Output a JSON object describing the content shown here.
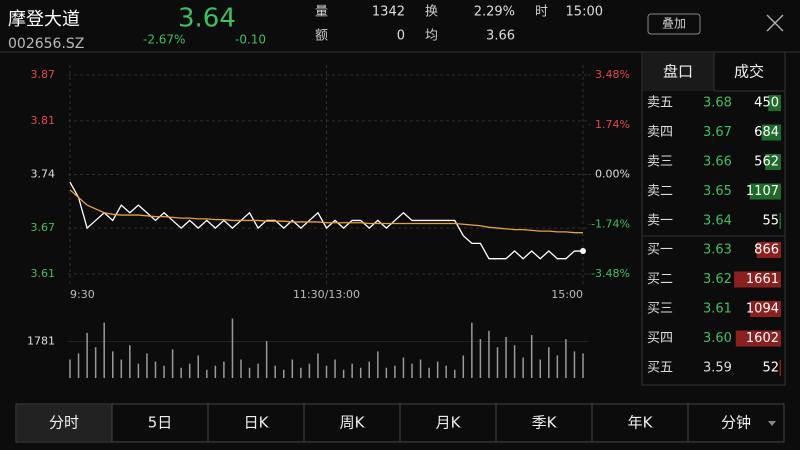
{
  "header": {
    "name": "摩登大道",
    "code": "002656.SZ",
    "price": "3.64",
    "change_pct": "-2.67%",
    "change": "-0.10",
    "stats": [
      {
        "label": "量",
        "value": "1342"
      },
      {
        "label": "额",
        "value": "0"
      },
      {
        "label": "换",
        "value": "2.29%"
      },
      {
        "label": "均",
        "value": "3.66"
      },
      {
        "label": "时",
        "value": "15:00"
      }
    ],
    "button": "叠加"
  },
  "chart_data": [
    {
      "type": "line",
      "xlim": [
        0,
        240
      ],
      "xticks": [
        {
          "value": 0,
          "label": "9:30"
        },
        {
          "value": 120,
          "label": "11:30/13:00"
        },
        {
          "value": 240,
          "label": "15:00"
        }
      ],
      "ylim": [
        3.61,
        3.87
      ],
      "yticks": [
        3.61,
        3.67,
        3.74,
        3.81,
        3.87
      ],
      "ytick_colors": [
        "#3fbf5f",
        "#3fbf5f",
        "#dddddd",
        "#e04848",
        "#e04848"
      ],
      "y2lim": [
        -3.48,
        3.48
      ],
      "y2ticks": [
        {
          "value": -3.48,
          "label": "-3.48%"
        },
        {
          "value": -1.74,
          "label": "-1.74%"
        },
        {
          "value": 0,
          "label": "0.00%"
        },
        {
          "value": 1.74,
          "label": "1.74%"
        },
        {
          "value": 3.48,
          "label": "3.48%"
        }
      ],
      "y2tick_colors": [
        "#3fbf5f",
        "#3fbf5f",
        "#dddddd",
        "#e04848",
        "#e04848"
      ],
      "grid": true,
      "x": [
        0,
        4,
        8,
        12,
        16,
        20,
        24,
        28,
        32,
        36,
        40,
        44,
        48,
        52,
        56,
        60,
        64,
        68,
        72,
        76,
        80,
        84,
        88,
        92,
        96,
        100,
        104,
        108,
        112,
        116,
        120,
        124,
        128,
        132,
        136,
        140,
        144,
        148,
        152,
        156,
        160,
        164,
        168,
        172,
        176,
        180,
        184,
        188,
        192,
        196,
        200,
        204,
        208,
        212,
        216,
        220,
        224,
        228,
        232,
        236,
        240
      ],
      "series": [
        {
          "name": "price",
          "color": "#ffffff",
          "values": [
            3.73,
            3.71,
            3.67,
            3.68,
            3.69,
            3.68,
            3.7,
            3.69,
            3.7,
            3.69,
            3.68,
            3.69,
            3.68,
            3.67,
            3.68,
            3.67,
            3.68,
            3.67,
            3.68,
            3.67,
            3.68,
            3.69,
            3.67,
            3.68,
            3.68,
            3.67,
            3.68,
            3.67,
            3.68,
            3.69,
            3.67,
            3.68,
            3.67,
            3.68,
            3.68,
            3.67,
            3.68,
            3.67,
            3.68,
            3.69,
            3.68,
            3.68,
            3.68,
            3.68,
            3.68,
            3.68,
            3.66,
            3.65,
            3.65,
            3.63,
            3.63,
            3.63,
            3.64,
            3.63,
            3.64,
            3.63,
            3.64,
            3.63,
            3.63,
            3.64,
            3.64
          ]
        },
        {
          "name": "average",
          "color": "#e8a040",
          "values": [
            3.72,
            3.71,
            3.7,
            3.695,
            3.69,
            3.688,
            3.687,
            3.687,
            3.687,
            3.686,
            3.685,
            3.685,
            3.684,
            3.683,
            3.683,
            3.682,
            3.682,
            3.681,
            3.681,
            3.68,
            3.68,
            3.68,
            3.68,
            3.679,
            3.679,
            3.679,
            3.678,
            3.678,
            3.678,
            3.678,
            3.677,
            3.677,
            3.677,
            3.677,
            3.677,
            3.676,
            3.676,
            3.676,
            3.676,
            3.676,
            3.676,
            3.676,
            3.676,
            3.676,
            3.676,
            3.676,
            3.675,
            3.674,
            3.673,
            3.671,
            3.67,
            3.669,
            3.668,
            3.668,
            3.667,
            3.666,
            3.666,
            3.665,
            3.665,
            3.664,
            3.664
          ]
        }
      ]
    },
    {
      "type": "bar",
      "xlim": [
        0,
        240
      ],
      "ylim": [
        0,
        3562
      ],
      "yticks": [
        1781
      ],
      "color": "#9a9a9a",
      "x": [
        0,
        4,
        8,
        12,
        16,
        20,
        24,
        28,
        32,
        36,
        40,
        44,
        48,
        52,
        56,
        60,
        64,
        68,
        72,
        76,
        80,
        84,
        88,
        92,
        96,
        100,
        104,
        108,
        112,
        116,
        120,
        124,
        128,
        132,
        136,
        140,
        144,
        148,
        152,
        156,
        160,
        164,
        168,
        172,
        176,
        180,
        184,
        188,
        192,
        196,
        200,
        204,
        208,
        212,
        216,
        220,
        224,
        228,
        232,
        236,
        240
      ],
      "values": [
        900,
        1200,
        2200,
        1500,
        2700,
        1300,
        900,
        1600,
        700,
        1200,
        800,
        600,
        1400,
        500,
        700,
        1100,
        400,
        600,
        800,
        2900,
        900,
        500,
        700,
        1800,
        600,
        400,
        900,
        500,
        700,
        1200,
        600,
        900,
        400,
        700,
        500,
        800,
        1300,
        500,
        600,
        1000,
        700,
        900,
        500,
        800,
        600,
        400,
        1100,
        2700,
        1900,
        2300,
        1500,
        2000,
        1600,
        1000,
        2100,
        900,
        1500,
        1100,
        1900,
        1300,
        1200
      ]
    }
  ],
  "order_book": {
    "tabs": [
      "盘口",
      "成交"
    ],
    "asks": [
      {
        "label": "卖五",
        "price": "3.68",
        "qty": 450,
        "color": "#3fbf5f"
      },
      {
        "label": "卖四",
        "price": "3.67",
        "qty": 684,
        "color": "#3fbf5f"
      },
      {
        "label": "卖三",
        "price": "3.66",
        "qty": 562,
        "color": "#3fbf5f"
      },
      {
        "label": "卖二",
        "price": "3.65",
        "qty": 1107,
        "color": "#3fbf5f"
      },
      {
        "label": "卖一",
        "price": "3.64",
        "qty": 55,
        "color": "#3fbf5f"
      }
    ],
    "bids": [
      {
        "label": "买一",
        "price": "3.63",
        "qty": 866,
        "color": "#3fbf5f"
      },
      {
        "label": "买二",
        "price": "3.62",
        "qty": 1661,
        "color": "#3fbf5f"
      },
      {
        "label": "买三",
        "price": "3.61",
        "qty": 1094,
        "color": "#3fbf5f"
      },
      {
        "label": "买四",
        "price": "3.60",
        "qty": 1602,
        "color": "#3fbf5f"
      },
      {
        "label": "买五",
        "price": "3.59",
        "qty": 52,
        "color": "#dddddd"
      }
    ]
  },
  "bottom_tabs": [
    "分时",
    "5日",
    "日K",
    "周K",
    "月K",
    "季K",
    "年K",
    "分钟"
  ]
}
